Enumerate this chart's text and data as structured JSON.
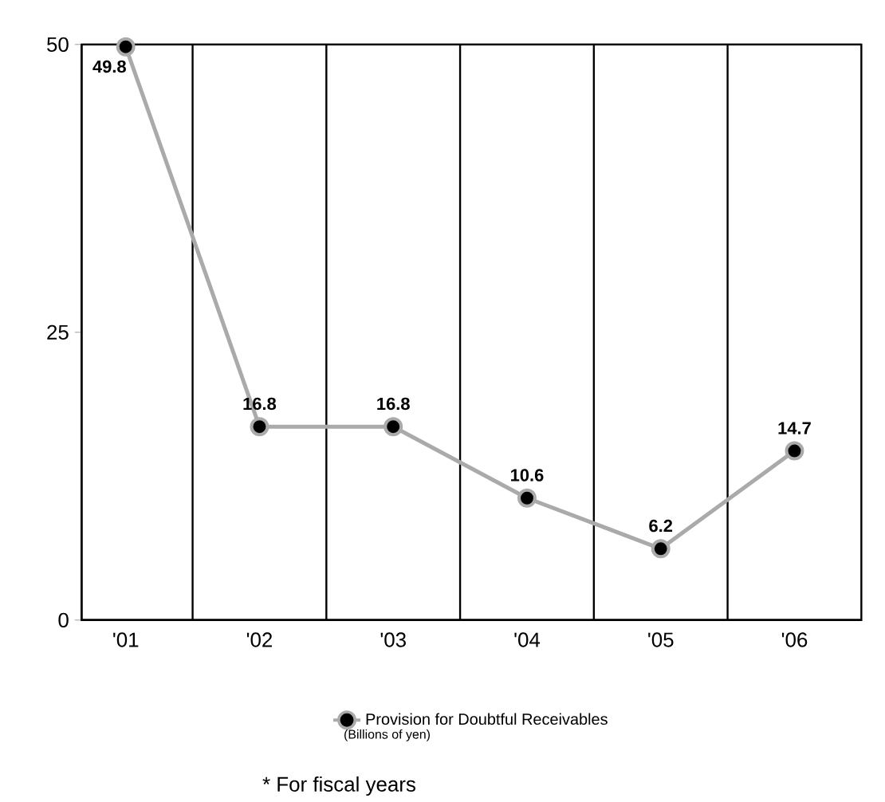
{
  "chart_data": {
    "type": "line",
    "categories": [
      "'01",
      "'02",
      "'03",
      "'04",
      "'05",
      "'06"
    ],
    "series": [
      {
        "name": "Provision for Doubtful Receivables",
        "color": "#aaaaaa",
        "values": [
          49.8,
          16.8,
          16.8,
          10.6,
          6.2,
          14.7
        ]
      }
    ],
    "ylim": [
      0,
      50
    ],
    "yticks": [
      0,
      25,
      50
    ],
    "grid": "x",
    "marker": "circle",
    "line_style": "solid",
    "data_labels": true,
    "legend": "bottom",
    "annotations": [
      "(Billions of yen)",
      "* For fiscal years"
    ]
  }
}
